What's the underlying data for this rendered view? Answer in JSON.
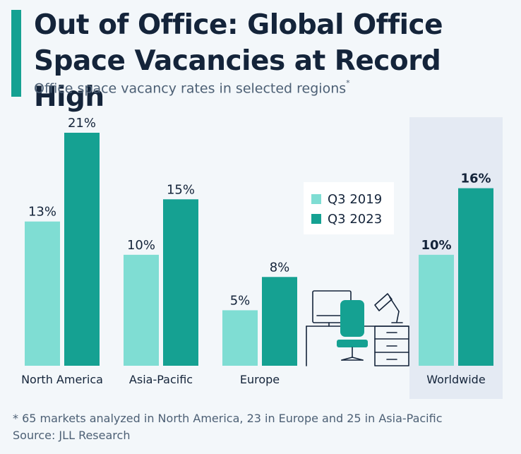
{
  "header": {
    "title_line1": "Out of Office: Global Office",
    "title_line2": "Space Vacancies at Record High",
    "subtitle": "Office space vacancy rates in selected regions",
    "subtitle_mark": "*"
  },
  "footer": {
    "footnote": "* 65 markets analyzed in North America, 23 in Europe and 25 in Asia-Pacific",
    "source": "Source: JLL Research"
  },
  "colors": {
    "q3_2019": "#7fddd3",
    "q3_2023": "#15a192",
    "highlight_bg": "#e4eaf3",
    "text": "#14243a"
  },
  "chart_data": {
    "type": "bar",
    "title": "Out of Office: Global Office Space Vacancies at Record High",
    "categories": [
      "North America",
      "Asia-Pacific",
      "Europe",
      "Worldwide"
    ],
    "series": [
      {
        "name": "Q3 2019",
        "values": [
          13,
          10,
          5,
          10
        ],
        "labels": [
          "13%",
          "10%",
          "5%",
          "10%"
        ]
      },
      {
        "name": "Q3 2023",
        "values": [
          21,
          15,
          8,
          16
        ],
        "labels": [
          "21%",
          "15%",
          "8%",
          "16%"
        ]
      }
    ],
    "highlighted_category": "Worldwide",
    "ylim": [
      0,
      21
    ],
    "unit": "%",
    "legend": "center-right"
  }
}
